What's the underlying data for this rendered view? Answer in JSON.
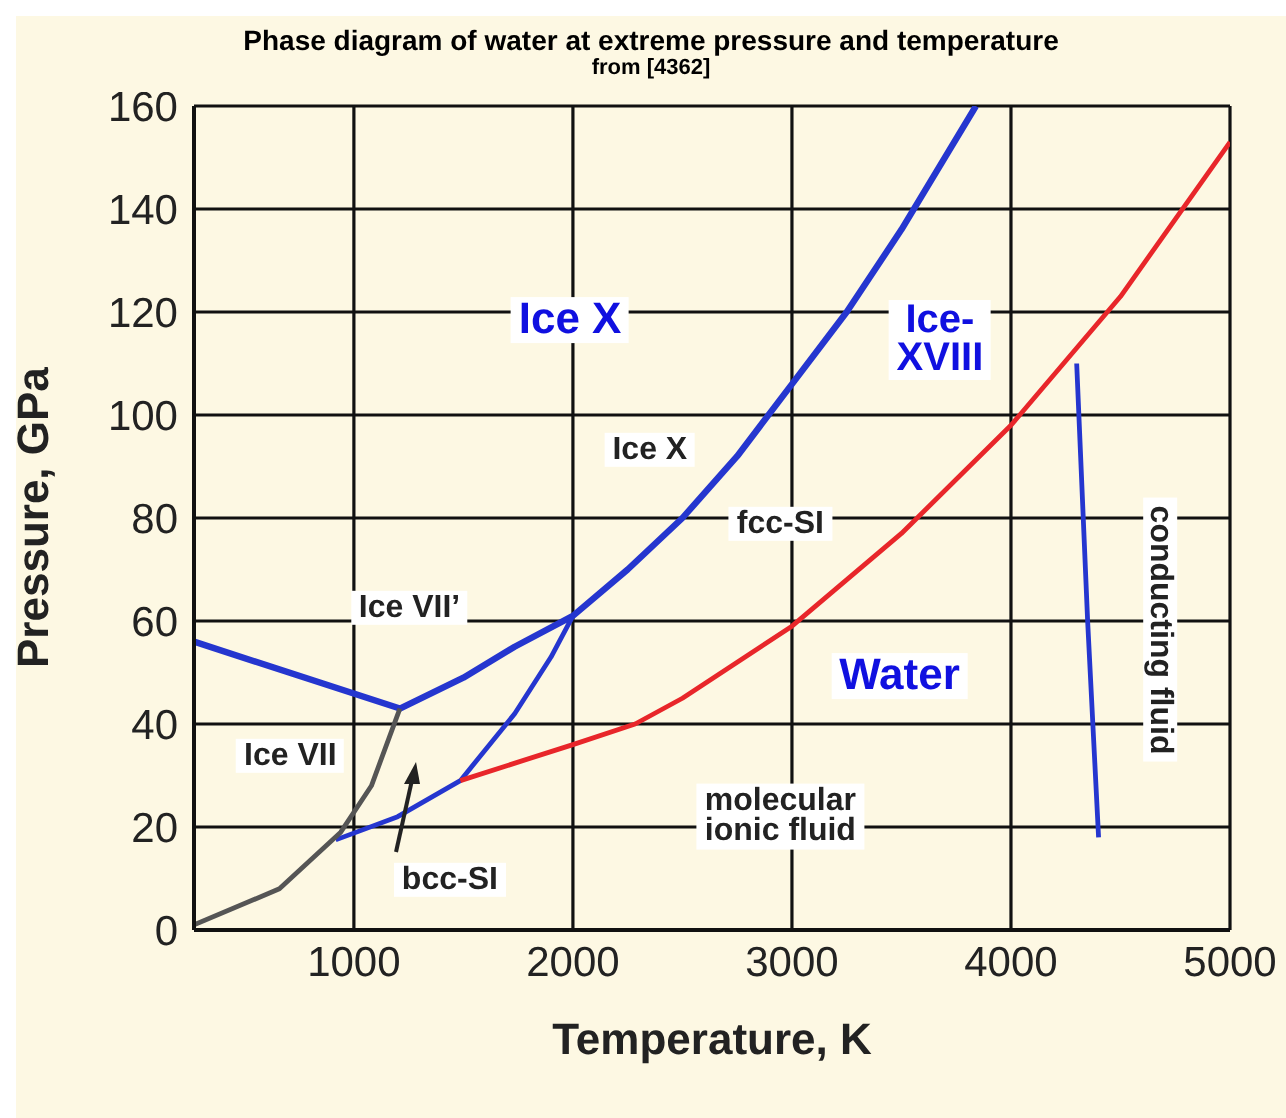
{
  "chart_data": {
    "type": "line",
    "title": "Phase diagram of water at extreme pressure and temperature",
    "subtitle": "from [4362]",
    "xlabel": "Temperature,  K",
    "ylabel": "Pressure, GPa",
    "xlim": [
      270,
      5000
    ],
    "xticks": [
      1000,
      2000,
      3000,
      4000,
      5000
    ],
    "ylim": [
      0,
      160
    ],
    "yticks": [
      0,
      20,
      40,
      60,
      80,
      100,
      120,
      140,
      160
    ],
    "grid": true,
    "series": [
      {
        "color": "#2536cf",
        "x": [
          270,
          1210,
          1500,
          1734,
          2000,
          2250,
          2500,
          2750,
          3000,
          3250,
          3500,
          3840
        ],
        "values": [
          56,
          43,
          49,
          55,
          61,
          70,
          80,
          92,
          106,
          120,
          136,
          160
        ]
      },
      {
        "color": "#2536cf",
        "x": [
          917,
          1200,
          1486,
          1734,
          1900,
          2000
        ],
        "values": [
          17.5,
          22,
          29,
          42,
          53,
          61
        ]
      },
      {
        "color": "#e8262a",
        "x": [
          1486,
          2000,
          2284,
          2500,
          3000,
          3500,
          4000,
          4500,
          5000
        ],
        "values": [
          29,
          36,
          40,
          45,
          59,
          77,
          98,
          123,
          153
        ]
      },
      {
        "color": "#2536cf",
        "x": [
          4300,
          4350,
          4400
        ],
        "values": [
          110,
          60,
          18
        ]
      },
      {
        "color": "#555555",
        "x": [
          270,
          660,
          940,
          1080,
          1210
        ],
        "values": [
          1,
          8,
          19,
          28,
          43
        ]
      }
    ],
    "annotations": [
      "Ice X",
      "Ice-\nXVIII",
      "Ice X",
      "fcc-SI",
      "Ice VII’",
      "Water",
      "Ice VII",
      "molecular\nionic fluid",
      "bcc-SI",
      "conducting fluid"
    ]
  }
}
